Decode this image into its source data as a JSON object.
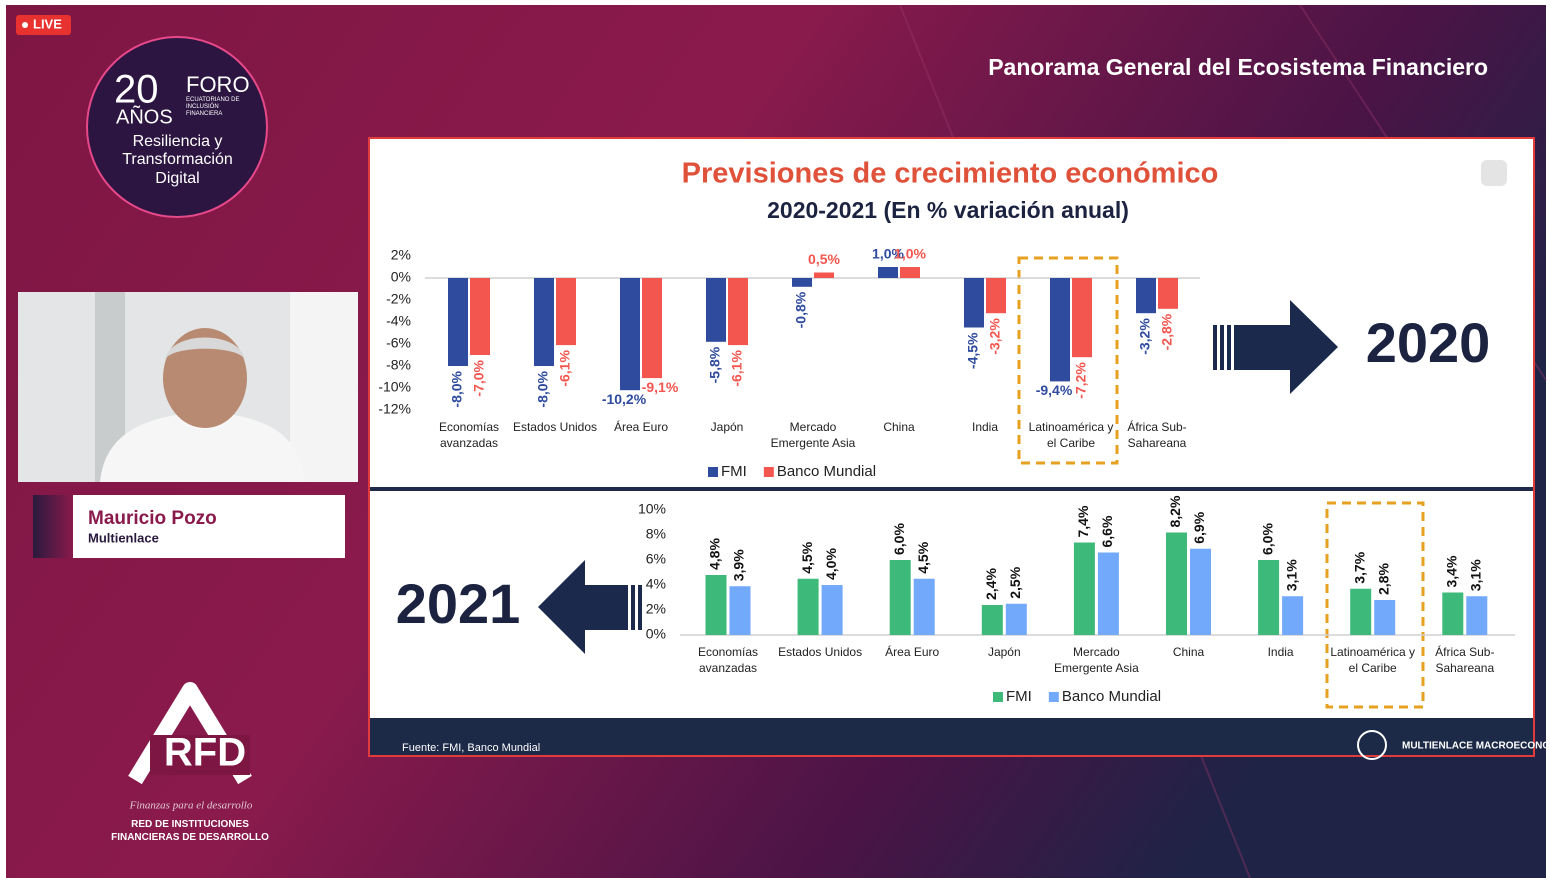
{
  "live_badge": "LIVE",
  "event_logo": {
    "years": "20",
    "years_label": "AÑOS",
    "foro": "FORO",
    "foro_sub": "ECUATORIANO DE INCLUSIÓN FINANCIERA",
    "tagline": "Resiliencia y Transformación Digital"
  },
  "header": {
    "title": "Panorama General del Ecosistema Financiero"
  },
  "speaker": {
    "name": "Mauricio Pozo",
    "organization": "Multienlace"
  },
  "sponsor": {
    "logo": "RFD",
    "slogan": "Finanzas para el desarrollo",
    "name": "RED DE INSTITUCIONES FINANCIERAS DE DESARROLLO"
  },
  "slide": {
    "title": "Previsiones de crecimiento económico",
    "subtitle": "2020-2021 (En % variación anual)",
    "source": "Fuente: FMI, Banco Mundial",
    "brand": "MULTIENLACE MACROECONOMÍA"
  },
  "chart_data": [
    {
      "type": "bar",
      "annotation": "2020",
      "categories": [
        "Economías avanzadas",
        "Estados Unidos",
        "Área Euro",
        "Japón",
        "Mercado Emergente Asia",
        "China",
        "India",
        "Latinoamérica y el Caribe",
        "África Sub-Sahareana"
      ],
      "series": [
        {
          "name": "FMI",
          "color": "#2f4b9e",
          "values": [
            -8.0,
            -8.0,
            -10.2,
            -5.8,
            -0.8,
            1.0,
            -4.5,
            -9.4,
            -3.2
          ],
          "value_labels": [
            "-8,0%",
            "-8,0%",
            "-10,2%",
            "-5,8%",
            "-0,8%",
            "1,0%",
            "-4,5%",
            "-9,4%",
            "-3,2%"
          ]
        },
        {
          "name": "Banco Mundial",
          "color": "#f2564f",
          "values": [
            -7.0,
            -6.1,
            -9.1,
            -6.1,
            0.5,
            1.0,
            -3.2,
            -7.2,
            -2.8
          ],
          "value_labels": [
            "-7,0%",
            "-6,1%",
            "-9,1%",
            "-6,1%",
            "0,5%",
            "1,0%",
            "-3,2%",
            "-7,2%",
            "-2,8%"
          ]
        }
      ],
      "ylim": [
        -12,
        2
      ],
      "yticks": [
        {
          "value": 2,
          "label": "2%"
        },
        {
          "value": 0,
          "label": "0%"
        },
        {
          "value": -2,
          "label": "-2%"
        },
        {
          "value": -4,
          "label": "-4%"
        },
        {
          "value": -6,
          "label": "-6%"
        },
        {
          "value": -8,
          "label": "-8%"
        },
        {
          "value": -10,
          "label": "-10%"
        },
        {
          "value": -12,
          "label": "-12%"
        }
      ],
      "legend": "bottom"
    },
    {
      "type": "bar",
      "annotation": "2021",
      "categories": [
        "Economías avanzadas",
        "Estados Unidos",
        "Área Euro",
        "Japón",
        "Mercado Emergente Asia",
        "China",
        "India",
        "Latinoamérica y el Caribe",
        "África Sub-Sahareana"
      ],
      "series": [
        {
          "name": "FMI",
          "color": "#3dba7a",
          "values": [
            4.8,
            4.5,
            6.0,
            2.4,
            7.4,
            8.2,
            6.0,
            3.7,
            3.4
          ],
          "value_labels": [
            "4,8%",
            "4,5%",
            "6,0%",
            "2,4%",
            "7,4%",
            "8,2%",
            "6,0%",
            "3,7%",
            "3,4%"
          ]
        },
        {
          "name": "Banco Mundial",
          "color": "#72a9fb",
          "values": [
            3.9,
            4.0,
            4.5,
            2.5,
            6.6,
            6.9,
            3.1,
            2.8,
            3.1
          ],
          "value_labels": [
            "3,9%",
            "4,0%",
            "4,5%",
            "2,5%",
            "6,6%",
            "6,9%",
            "3,1%",
            "2,8%",
            "3,1%"
          ]
        }
      ],
      "ylim": [
        0,
        10
      ],
      "yticks": [
        {
          "value": 0,
          "label": "0%"
        },
        {
          "value": 2,
          "label": "2%"
        },
        {
          "value": 4,
          "label": "4%"
        },
        {
          "value": 6,
          "label": "6%"
        },
        {
          "value": 8,
          "label": "8%"
        },
        {
          "value": 10,
          "label": "10%"
        }
      ],
      "legend": "bottom"
    }
  ]
}
